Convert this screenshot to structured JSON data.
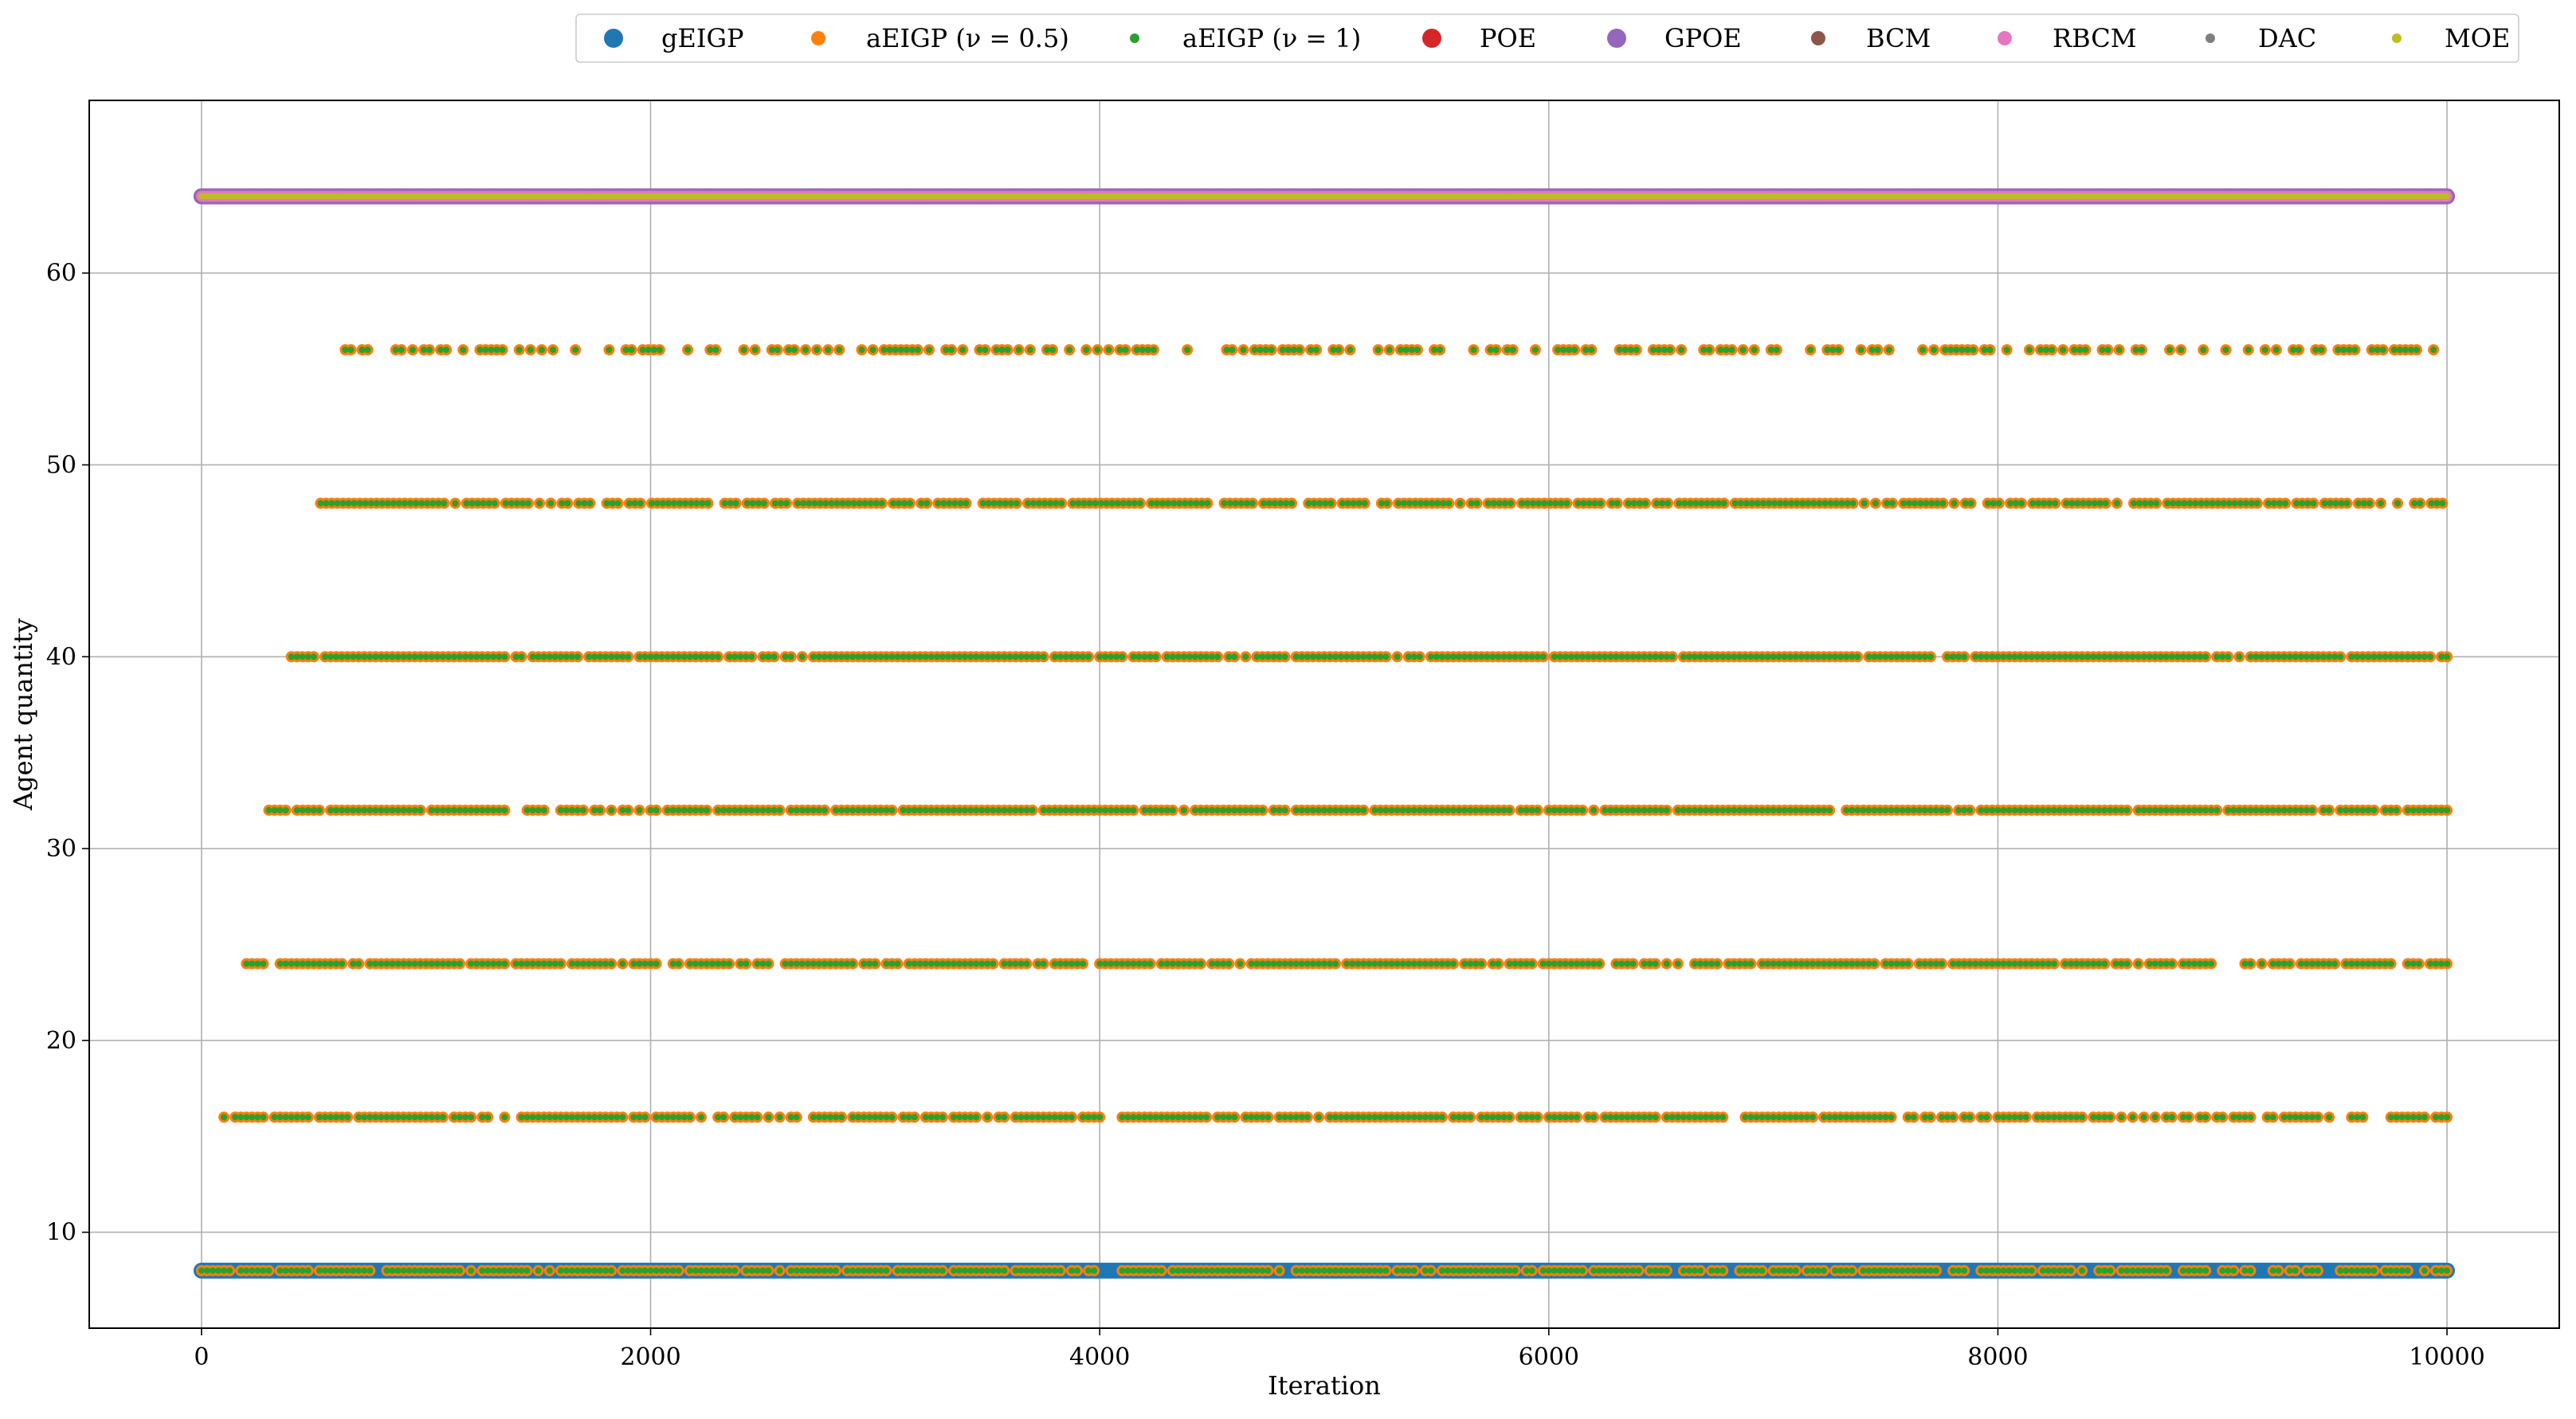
{
  "chart_data": {
    "type": "scatter",
    "xlabel": "Iteration",
    "ylabel": "Agent quantity",
    "xlim": [
      -500,
      10500
    ],
    "ylim": [
      5,
      69
    ],
    "xticks": [
      0,
      2000,
      4000,
      6000,
      8000,
      10000
    ],
    "yticks": [
      10,
      20,
      30,
      40,
      50,
      60
    ],
    "grid": true,
    "legend_position": "top, above plot, right-aligned",
    "series": [
      {
        "name": "gEIGP",
        "color": "#1f77b4",
        "marker_size": "large",
        "points": [
          {
            "x_range": [
              0,
              10000
            ],
            "y": 8
          }
        ]
      },
      {
        "name": "aEIGP (ν = 0.5)",
        "color": "#ff7f0e",
        "marker_size": "medium",
        "levels": [
          {
            "y": 8,
            "x_start": 0,
            "x_end": 10000
          },
          {
            "y": 16,
            "x_start": 100,
            "x_end": 10000
          },
          {
            "y": 24,
            "x_start": 200,
            "x_end": 10000
          },
          {
            "y": 32,
            "x_start": 300,
            "x_end": 10000
          },
          {
            "y": 40,
            "x_start": 400,
            "x_end": 10000
          },
          {
            "y": 48,
            "x_start": 530,
            "x_end": 10000
          },
          {
            "y": 56,
            "x_start": 640,
            "x_end": 9950
          }
        ]
      },
      {
        "name": "aEIGP (ν = 1)",
        "color": "#2ca02c",
        "marker_size": "small",
        "levels": [
          {
            "y": 8,
            "x_start": 0,
            "x_end": 10000
          },
          {
            "y": 16,
            "x_start": 100,
            "x_end": 10000
          },
          {
            "y": 24,
            "x_start": 200,
            "x_end": 10000
          },
          {
            "y": 32,
            "x_start": 300,
            "x_end": 10000
          },
          {
            "y": 40,
            "x_start": 400,
            "x_end": 10000
          },
          {
            "y": 48,
            "x_start": 530,
            "x_end": 10000
          },
          {
            "y": 56,
            "x_start": 640,
            "x_end": 9950
          }
        ]
      },
      {
        "name": "POE",
        "color": "#d62728",
        "marker_size": "large",
        "points": [
          {
            "x_range": [
              0,
              10000
            ],
            "y": 64
          }
        ]
      },
      {
        "name": "GPOE",
        "color": "#9467bd",
        "marker_size": "large",
        "points": [
          {
            "x_range": [
              0,
              10000
            ],
            "y": 64
          }
        ]
      },
      {
        "name": "BCM",
        "color": "#8c564b",
        "marker_size": "medium",
        "points": [
          {
            "x_range": [
              0,
              10000
            ],
            "y": 64
          }
        ]
      },
      {
        "name": "RBCM",
        "color": "#e377c2",
        "marker_size": "medium",
        "points": [
          {
            "x_range": [
              0,
              10000
            ],
            "y": 64
          }
        ]
      },
      {
        "name": "DAC",
        "color": "#7f7f7f",
        "marker_size": "small",
        "points": [
          {
            "x_range": [
              0,
              10000
            ],
            "y": 64
          }
        ]
      },
      {
        "name": "MOE",
        "color": "#bcbd22",
        "marker_size": "small",
        "points": [
          {
            "x_range": [
              0,
              10000
            ],
            "y": 64
          }
        ]
      }
    ]
  }
}
